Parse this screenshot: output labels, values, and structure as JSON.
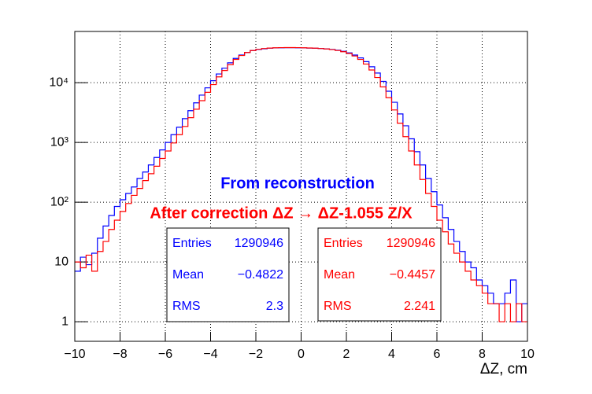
{
  "chart_data": {
    "type": "histogram",
    "annotations": [
      "From reconstruction",
      "After correction ΔZ → ΔZ-1.055 Z/X"
    ],
    "xlabel": "ΔZ, cm",
    "xlim": [
      -10,
      10
    ],
    "xticks": [
      {
        "value": -10,
        "label": "−10"
      },
      {
        "value": -8,
        "label": "−8"
      },
      {
        "value": -6,
        "label": "−6"
      },
      {
        "value": -4,
        "label": "−4"
      },
      {
        "value": -2,
        "label": "−2"
      },
      0,
      2,
      4,
      6,
      8,
      10
    ],
    "ylim": [
      0.47,
      72000
    ],
    "yticks": [
      1,
      10,
      {
        "value": 100,
        "label": "10²"
      },
      {
        "value": 1000,
        "label": "10³"
      },
      {
        "value": 10000,
        "label": "10⁴"
      }
    ],
    "log_y": true,
    "grid": true,
    "bins": [
      -10,
      -9.75,
      -9.5,
      -9.25,
      -9,
      -8.75,
      -8.5,
      -8.25,
      -8,
      -7.75,
      -7.5,
      -7.25,
      -7,
      -6.75,
      -6.5,
      -6.25,
      -6,
      -5.75,
      -5.5,
      -5.25,
      -5,
      -4.75,
      -4.5,
      -4.25,
      -4,
      -3.75,
      -3.5,
      -3.25,
      -3,
      -2.75,
      -2.5,
      -2.25,
      -2,
      -1.75,
      -1.5,
      -1.25,
      -1,
      -0.75,
      -0.5,
      -0.25,
      0,
      0.25,
      0.5,
      0.75,
      1,
      1.25,
      1.5,
      1.75,
      2,
      2.25,
      2.5,
      2.75,
      3,
      3.25,
      3.5,
      3.75,
      4,
      4.25,
      4.5,
      4.75,
      5,
      5.25,
      5.5,
      5.75,
      6,
      6.25,
      6.5,
      6.75,
      7,
      7.25,
      7.5,
      7.75,
      8,
      8.25,
      8.5,
      8.75,
      9,
      9.25,
      9.5,
      9.75,
      10
    ],
    "series": [
      {
        "color": "#0000ff",
        "values": [
          7,
          12,
          9,
          14,
          25,
          40,
          60,
          85,
          110,
          140,
          180,
          250,
          320,
          420,
          560,
          750,
          1000,
          1350,
          1800,
          2500,
          3400,
          4600,
          6200,
          8200,
          10800,
          14000,
          17500,
          21500,
          25500,
          29000,
          32000,
          34500,
          36000,
          37000,
          37800,
          38200,
          38400,
          38500,
          38500,
          38400,
          38200,
          38000,
          37700,
          37300,
          36800,
          36000,
          35000,
          33500,
          31500,
          29000,
          26000,
          22500,
          18500,
          14500,
          10500,
          7200,
          4700,
          3000,
          1900,
          1150,
          700,
          420,
          250,
          150,
          90,
          55,
          35,
          22,
          15,
          10,
          8,
          5,
          4,
          3,
          2,
          2,
          3,
          5,
          1,
          2
        ],
        "stats": [
          {
            "name": "Entries",
            "value": 1290946
          },
          {
            "name": "Mean",
            "value": -0.4822,
            "label": "−0.4822"
          },
          {
            "name": "RMS",
            "value": 2.3
          }
        ]
      },
      {
        "color": "#ff0000",
        "values": [
          10,
          8,
          13,
          7,
          15,
          22,
          35,
          50,
          70,
          95,
          130,
          170,
          230,
          300,
          400,
          540,
          720,
          980,
          1350,
          1850,
          2600,
          3600,
          5000,
          6900,
          9300,
          12500,
          16000,
          20000,
          24500,
          28500,
          32000,
          34500,
          36200,
          37300,
          38000,
          38400,
          38600,
          38700,
          38700,
          38600,
          38400,
          38100,
          37800,
          37300,
          36700,
          35800,
          34600,
          33000,
          30800,
          28000,
          24500,
          20500,
          16300,
          12200,
          8500,
          5600,
          3500,
          2100,
          1250,
          720,
          420,
          240,
          140,
          85,
          50,
          32,
          20,
          14,
          10,
          7,
          5,
          4,
          3,
          2,
          2,
          1,
          2,
          1,
          2,
          1
        ],
        "stats": [
          {
            "name": "Entries",
            "value": 1290946
          },
          {
            "name": "Mean",
            "value": -0.4457,
            "label": "−0.4457"
          },
          {
            "name": "RMS",
            "value": 2.241
          }
        ]
      }
    ]
  }
}
